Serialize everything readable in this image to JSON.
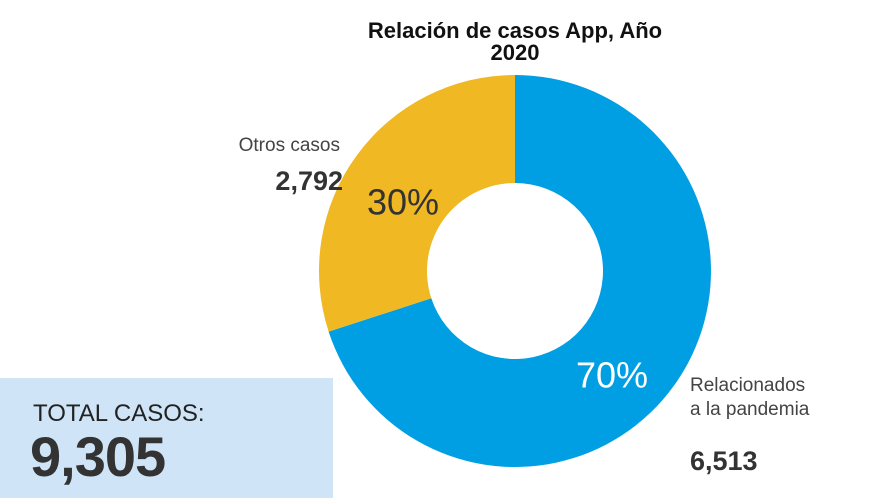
{
  "chart_data": {
    "type": "pie",
    "title": "Relación de casos App, Año 2020",
    "categories": [
      "Otros casos",
      "Relacionados a la pandemia"
    ],
    "values": [
      2792,
      6513
    ],
    "value_labels": [
      "2,792",
      "6,513"
    ],
    "percentages": [
      30,
      70
    ],
    "percentage_labels": [
      "30%",
      "70%"
    ],
    "colors": [
      "#f0b823",
      "#009fe3"
    ],
    "total_label": "TOTAL CASOS:",
    "total": "9,305"
  }
}
